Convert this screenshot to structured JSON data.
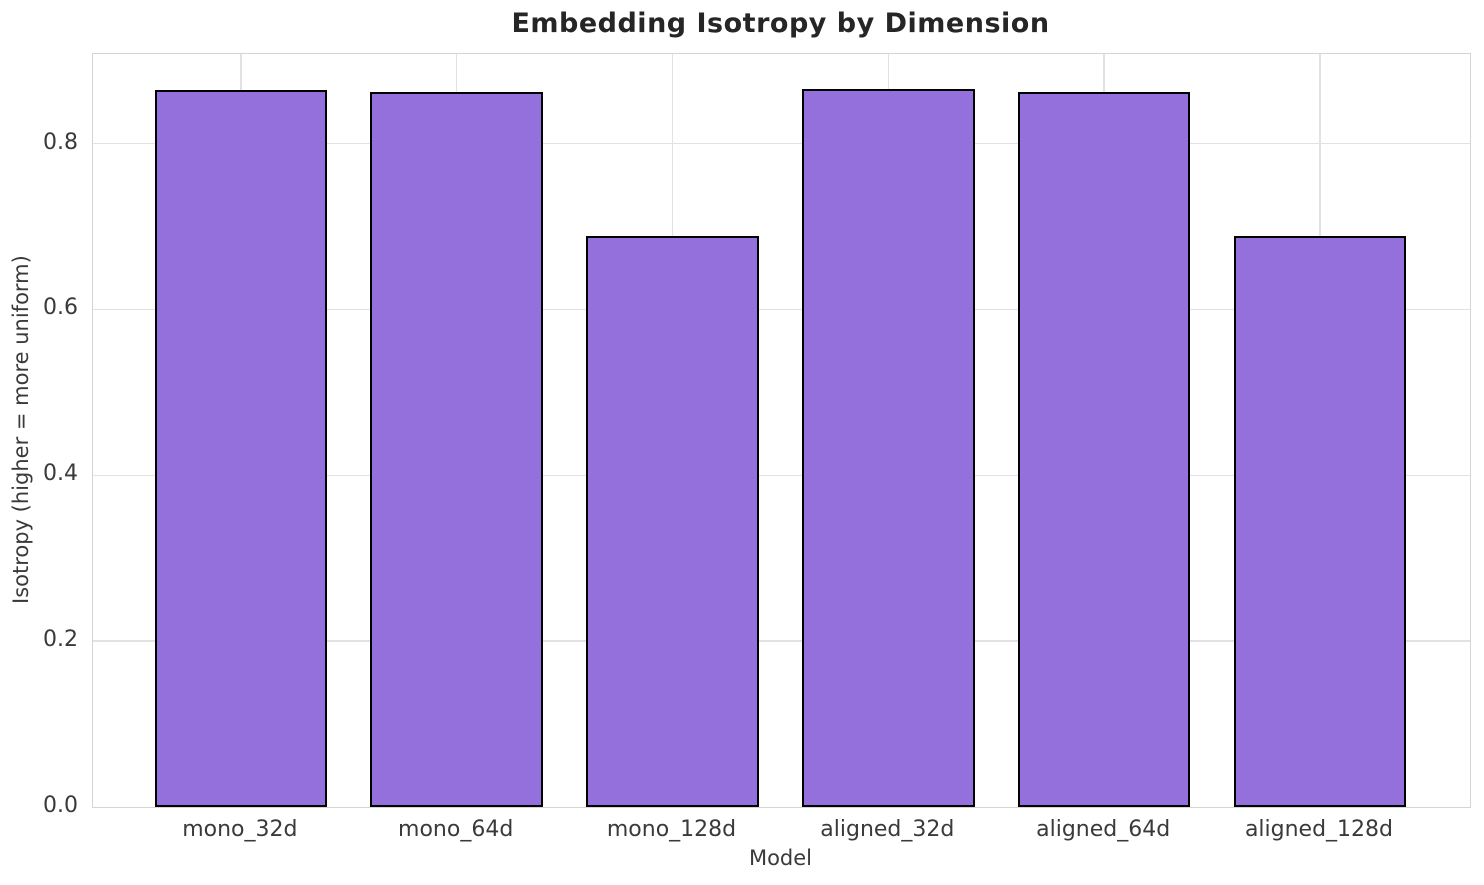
{
  "chart_data": {
    "type": "bar",
    "title": "Embedding Isotropy by Dimension",
    "xlabel": "Model",
    "ylabel": "Isotropy (higher = more uniform)",
    "categories": [
      "mono_32d",
      "mono_64d",
      "mono_128d",
      "aligned_32d",
      "aligned_64d",
      "aligned_128d"
    ],
    "values": [
      0.865,
      0.862,
      0.688,
      0.866,
      0.862,
      0.688
    ],
    "yticks": [
      0.0,
      0.2,
      0.4,
      0.6,
      0.8
    ],
    "ytick_labels": [
      "0.0",
      "0.2",
      "0.4",
      "0.6",
      "0.8"
    ],
    "ylim": [
      0,
      0.908
    ],
    "xlim": [
      -0.685,
      5.695
    ],
    "bar_width_fraction": 0.8,
    "grid": true,
    "legend": "none",
    "colors": {
      "bar_fill": "#9370DB",
      "bar_edge": "#000000",
      "grid": "#e2e2e2",
      "spine": "#d4d4d4",
      "tick_text": "#3a3a3a",
      "title_text": "#262626",
      "background": "#ffffff"
    }
  }
}
